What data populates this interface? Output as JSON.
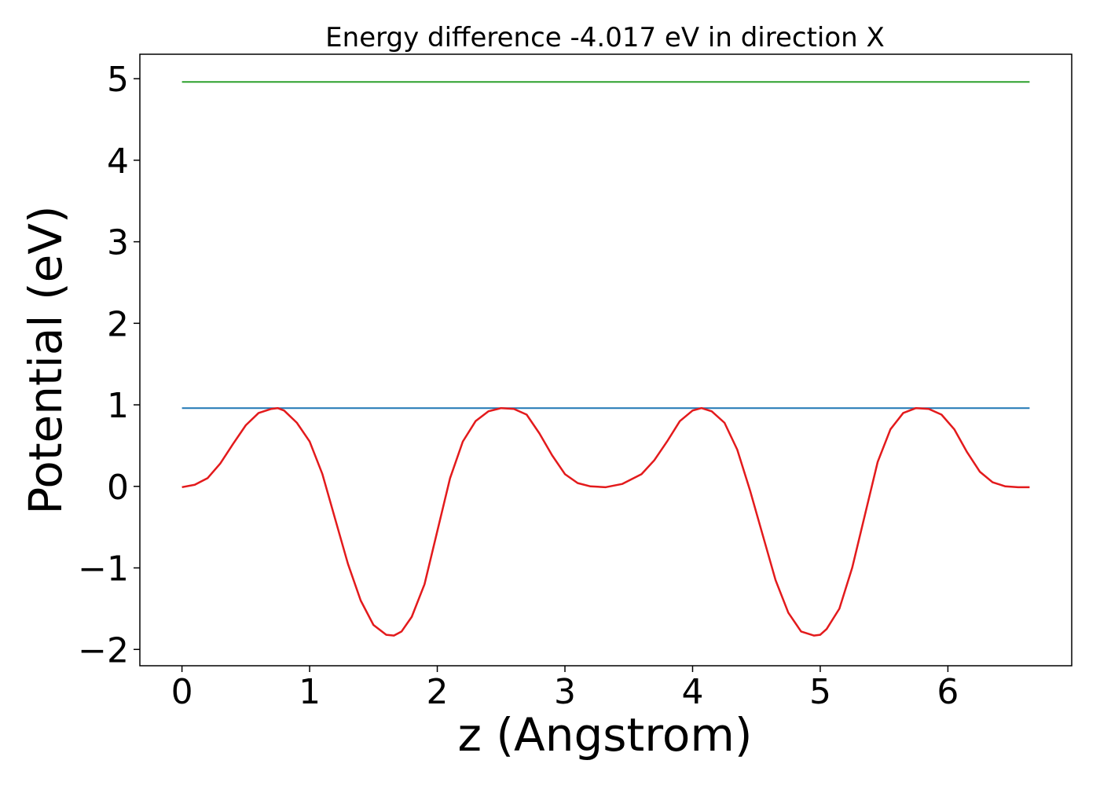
{
  "chart_data": {
    "type": "line",
    "title": "Energy difference -4.017 eV in direction X",
    "xlabel": "z (Angstrom)",
    "ylabel": "Potential (eV)",
    "xlim": [
      -0.33,
      6.97
    ],
    "ylim": [
      -2.2,
      5.3
    ],
    "xticks": [
      0,
      1,
      2,
      3,
      4,
      5,
      6
    ],
    "xtick_labels": [
      "0",
      "1",
      "2",
      "3",
      "4",
      "5",
      "6"
    ],
    "yticks": [
      -2,
      -1,
      0,
      1,
      2,
      3,
      4,
      5
    ],
    "ytick_labels": [
      "−2",
      "−1",
      "0",
      "1",
      "2",
      "3",
      "4",
      "5"
    ],
    "grid": false,
    "legend": "none",
    "series": [
      {
        "color": "#2ca02c",
        "x": [
          0,
          6.64
        ],
        "y": [
          4.96,
          4.96
        ]
      },
      {
        "color": "#1f77b4",
        "x": [
          0,
          6.64
        ],
        "y": [
          0.96,
          0.96
        ]
      },
      {
        "color": "#e31a1c",
        "x": [
          0,
          0.1,
          0.2,
          0.3,
          0.4,
          0.5,
          0.6,
          0.7,
          0.75,
          0.8,
          0.9,
          1.0,
          1.1,
          1.2,
          1.3,
          1.4,
          1.5,
          1.6,
          1.66,
          1.72,
          1.8,
          1.9,
          2.0,
          2.1,
          2.2,
          2.3,
          2.4,
          2.5,
          2.6,
          2.7,
          2.8,
          2.9,
          3.0,
          3.1,
          3.2,
          3.32,
          3.45,
          3.6,
          3.7,
          3.8,
          3.9,
          4.0,
          4.07,
          4.15,
          4.25,
          4.35,
          4.45,
          4.55,
          4.65,
          4.75,
          4.85,
          4.95,
          5.0,
          5.05,
          5.15,
          5.25,
          5.35,
          5.45,
          5.55,
          5.65,
          5.75,
          5.85,
          5.95,
          6.05,
          6.15,
          6.25,
          6.35,
          6.45,
          6.55,
          6.64
        ],
        "y": [
          -0.01,
          0.02,
          0.1,
          0.28,
          0.52,
          0.75,
          0.9,
          0.95,
          0.96,
          0.93,
          0.78,
          0.55,
          0.15,
          -0.4,
          -0.95,
          -1.4,
          -1.7,
          -1.82,
          -1.83,
          -1.78,
          -1.6,
          -1.2,
          -0.55,
          0.1,
          0.55,
          0.8,
          0.92,
          0.96,
          0.95,
          0.88,
          0.65,
          0.38,
          0.15,
          0.04,
          0.0,
          -0.01,
          0.03,
          0.15,
          0.32,
          0.55,
          0.8,
          0.93,
          0.96,
          0.92,
          0.78,
          0.45,
          -0.05,
          -0.6,
          -1.15,
          -1.55,
          -1.78,
          -1.83,
          -1.82,
          -1.75,
          -1.5,
          -1.0,
          -0.35,
          0.3,
          0.7,
          0.9,
          0.96,
          0.95,
          0.88,
          0.7,
          0.42,
          0.18,
          0.05,
          0.0,
          -0.01,
          -0.01
        ]
      }
    ]
  }
}
